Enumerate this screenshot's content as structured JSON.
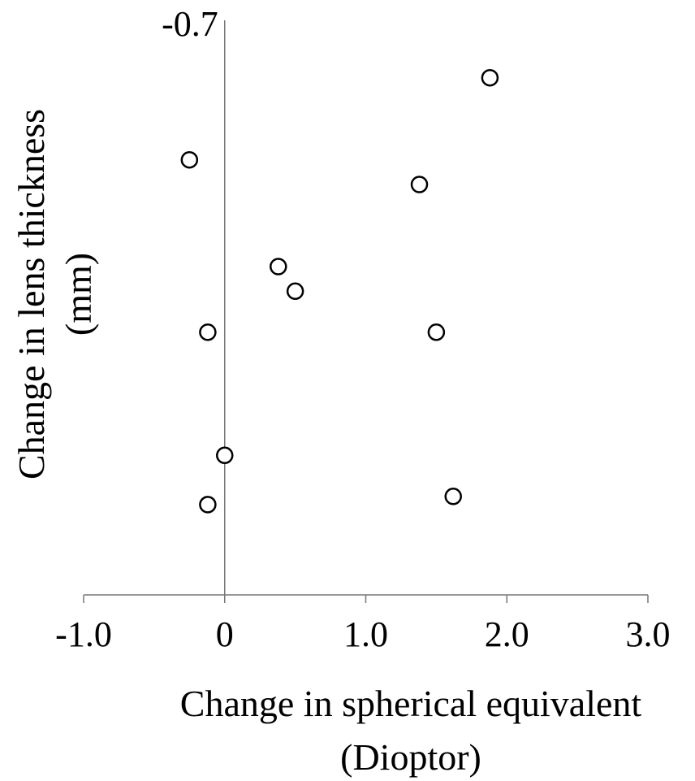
{
  "chart_data": {
    "type": "scatter",
    "title": "",
    "xlabel_lines": [
      "Change in spherical equivalent",
      "(Dioptor)"
    ],
    "ylabel_lines": [
      "Change in lens thickness",
      "(mm)"
    ],
    "xlim": [
      -1.0,
      3.0
    ],
    "ylim": [
      -0.7,
      0.0
    ],
    "x_ticks": [
      -1.0,
      0,
      1.0,
      2.0,
      3.0
    ],
    "x_tick_labels": [
      "-1.0",
      "0",
      "1.0",
      "2.0",
      "3.0"
    ],
    "y_tick_labels_shown": [
      "-0.7"
    ],
    "grid": false,
    "legend": "none",
    "marker": "open-circle",
    "points": [
      {
        "x": 1.88,
        "y": -0.63
      },
      {
        "x": -0.25,
        "y": -0.53
      },
      {
        "x": 1.38,
        "y": -0.5
      },
      {
        "x": 0.38,
        "y": -0.4
      },
      {
        "x": 0.5,
        "y": -0.37
      },
      {
        "x": -0.12,
        "y": -0.32
      },
      {
        "x": 1.5,
        "y": -0.32
      },
      {
        "x": 0.0,
        "y": -0.17
      },
      {
        "x": 1.62,
        "y": -0.12
      },
      {
        "x": -0.12,
        "y": -0.11
      }
    ]
  }
}
